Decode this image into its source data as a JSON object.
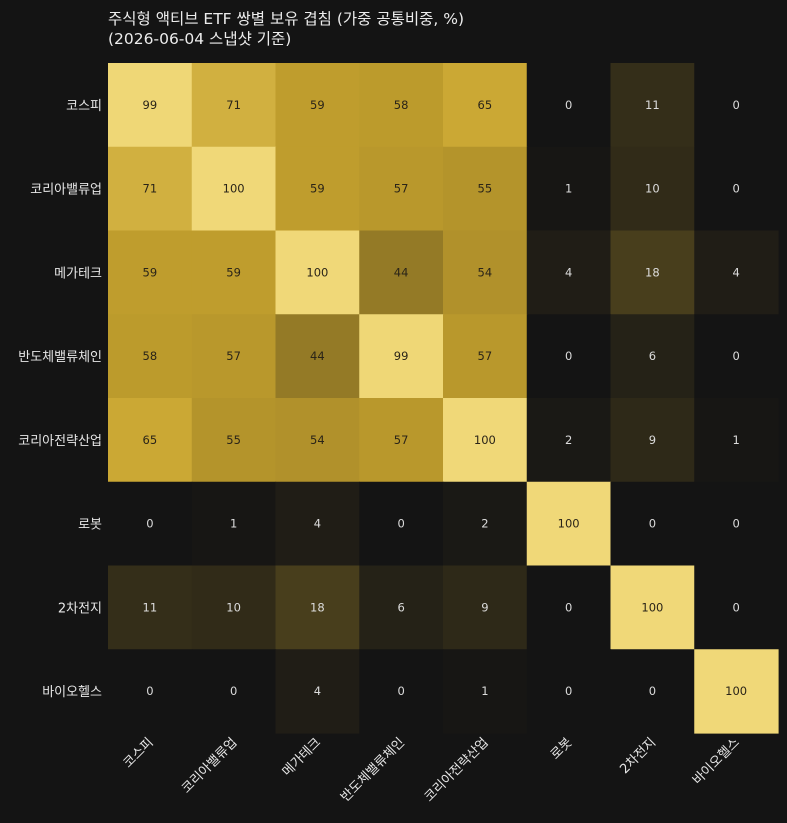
{
  "chart_data": {
    "type": "heatmap",
    "title_lines": [
      "주식형 액티브 ETF 쌍별 보유 겹침 (가중 공통비중, %)",
      "(2026-06-04 스냅샷 기준)"
    ],
    "rows": [
      "코스피",
      "코리아밸류업",
      "메가테크",
      "반도체밸류체인",
      "코리아전략산업",
      "로봇",
      "2차전지",
      "바이오헬스"
    ],
    "cols": [
      "코스피",
      "코리아밸류업",
      "메가테크",
      "반도체밸류체인",
      "코리아전략산업",
      "로봇",
      "2차전지",
      "바이오헬스"
    ],
    "values": [
      [
        99,
        71,
        59,
        58,
        65,
        0,
        11,
        0
      ],
      [
        71,
        100,
        59,
        57,
        55,
        1,
        10,
        0
      ],
      [
        59,
        59,
        100,
        44,
        54,
        4,
        18,
        4
      ],
      [
        58,
        57,
        44,
        99,
        57,
        0,
        6,
        0
      ],
      [
        65,
        55,
        54,
        57,
        100,
        2,
        9,
        1
      ],
      [
        0,
        1,
        4,
        0,
        2,
        100,
        0,
        0
      ],
      [
        11,
        10,
        18,
        6,
        9,
        0,
        100,
        0
      ],
      [
        0,
        0,
        4,
        0,
        1,
        0,
        0,
        100
      ]
    ],
    "color_scale": {
      "min": 0,
      "max": 100,
      "low": "#141414",
      "mid": "#c8a42e",
      "high": "#f0d878"
    },
    "colorbar": false,
    "grid": false
  }
}
